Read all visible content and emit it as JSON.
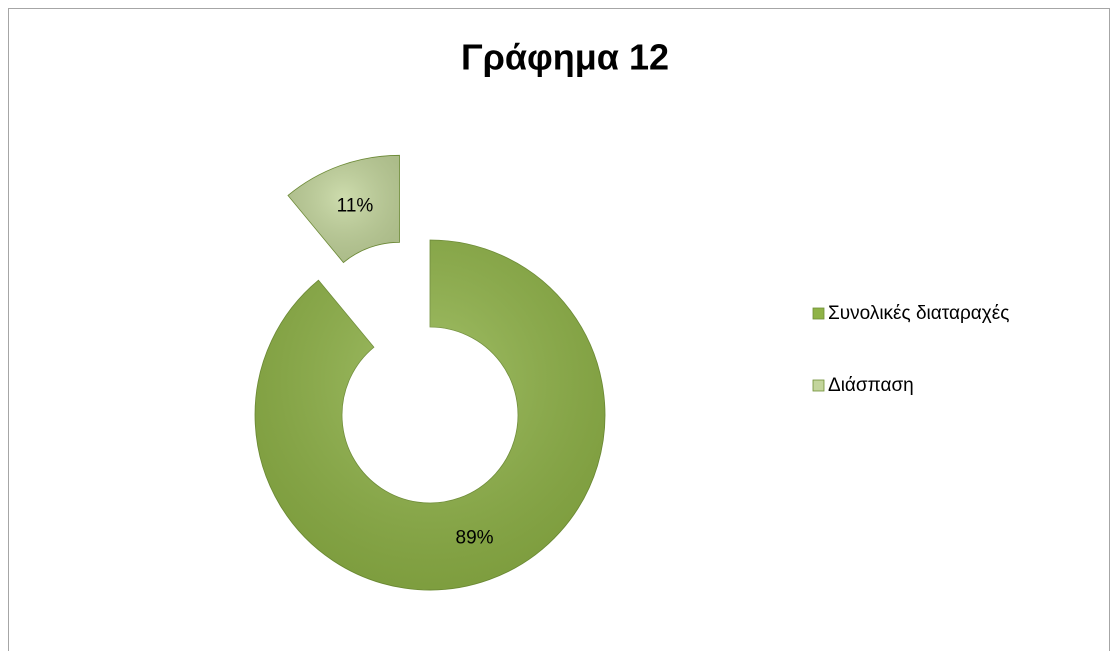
{
  "chart_data": {
    "type": "doughnut",
    "title": "Γράφημα 12",
    "categories": [
      "Συνολικές διαταραχές",
      "Διάσπαση"
    ],
    "values": [
      89,
      11
    ],
    "value_labels": [
      "89%",
      "11%"
    ],
    "colors": [
      "#8fb347",
      "#c3d59c"
    ],
    "legend": "right"
  }
}
